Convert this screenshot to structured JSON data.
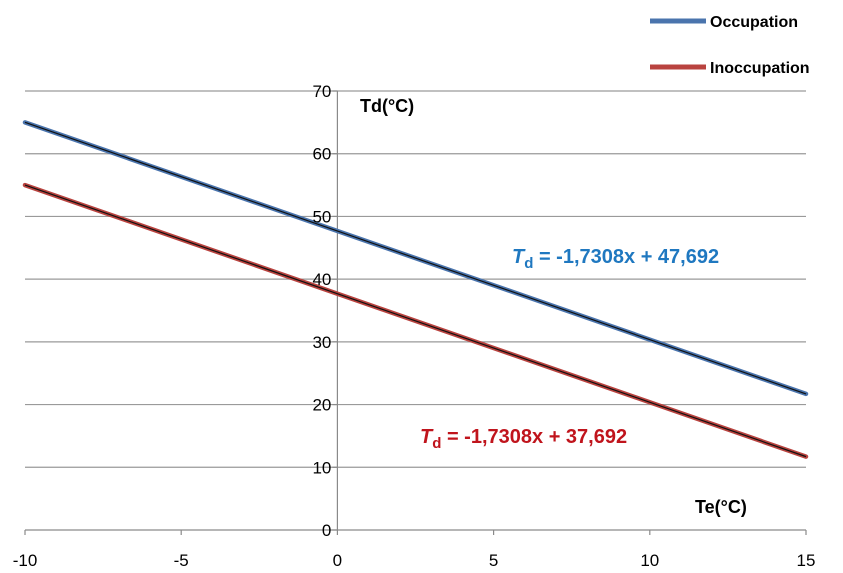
{
  "chart_data": {
    "type": "line",
    "x_axis": {
      "min": -10,
      "max": 15,
      "ticks": [
        -10,
        -5,
        0,
        5,
        10,
        15
      ],
      "label": "Te(°C)"
    },
    "y_axis": {
      "min": 0,
      "max": 70,
      "ticks": [
        0,
        10,
        20,
        30,
        40,
        50,
        60,
        70
      ],
      "label": "Td(°C)"
    },
    "grid": "horizontal",
    "legend": {
      "position": "top-right"
    },
    "series": [
      {
        "name": "Occupation",
        "color": "#4a74ad",
        "x": [
          -10,
          15
        ],
        "y": [
          65.0,
          21.7
        ],
        "equation": {
          "prefix": "T",
          "subscript": "d",
          "text": " = -1,7308x + 47,692",
          "color": "#1f78c0"
        }
      },
      {
        "name": "Inoccupation",
        "color": "#b9433f",
        "x": [
          -10,
          15
        ],
        "y": [
          55.0,
          11.7
        ],
        "equation": {
          "prefix": "T",
          "subscript": "d",
          "text": " = -1,7308x + 37,692",
          "color": "#c0141c"
        }
      }
    ]
  }
}
